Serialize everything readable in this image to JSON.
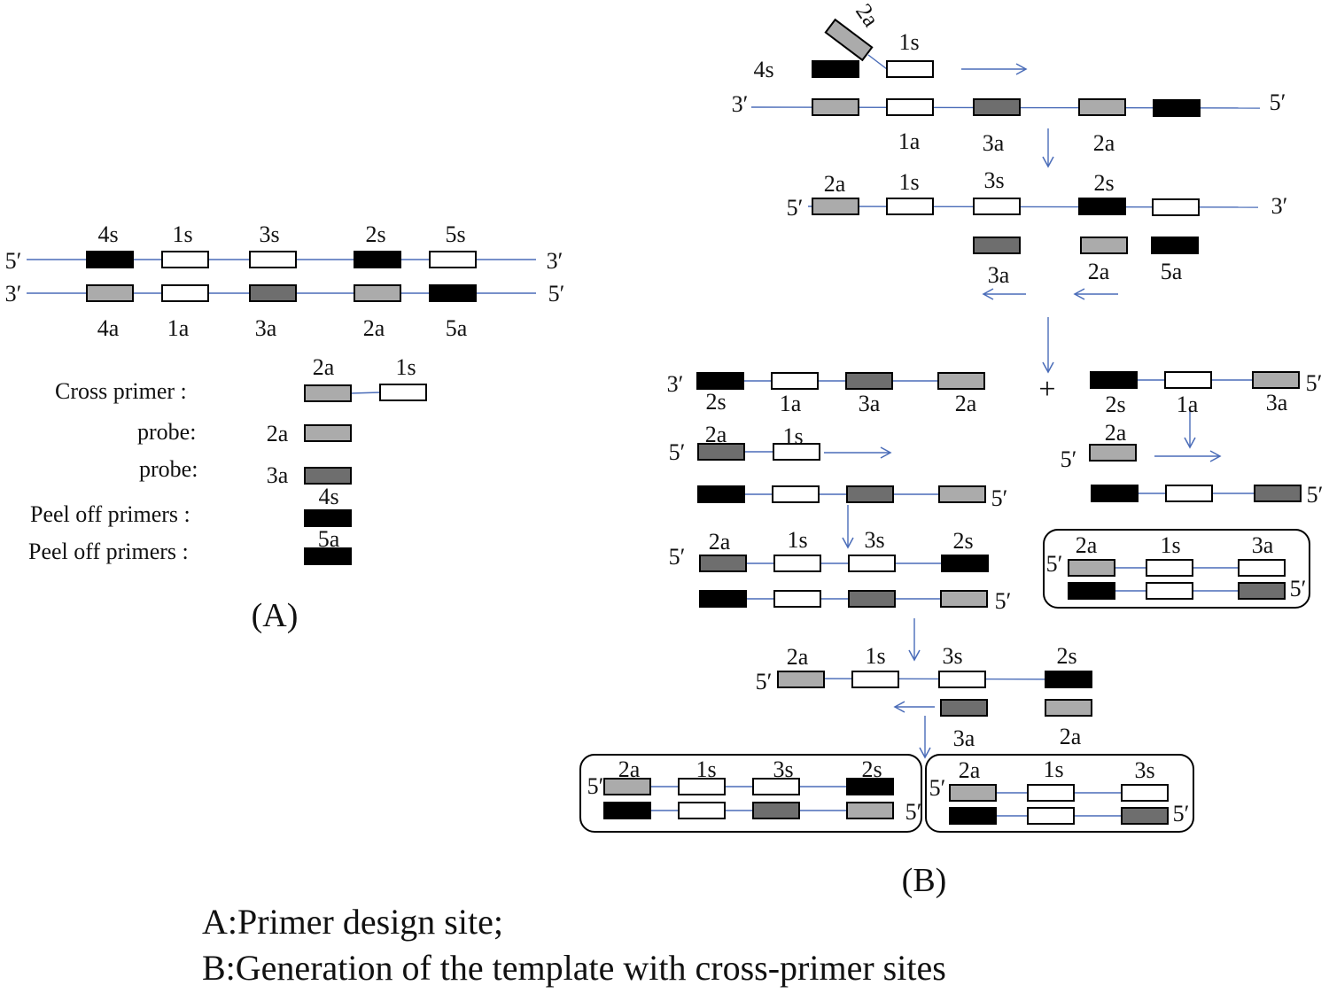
{
  "colors": {
    "strand_line": "#4a6cb8",
    "black_site": "#000000",
    "light_site": "#ababab",
    "dark_site": "#6e6e6e",
    "white_site": "#ffffff"
  },
  "labels": [
    "5′",
    "3′",
    "3′",
    "5′",
    "4s",
    "1s",
    "3s",
    "2s",
    "5s",
    "4a",
    "1a",
    "3a",
    "2a",
    "5a",
    "Cross primer :",
    "2a",
    "1s",
    "probe:",
    "2a",
    "probe:",
    "3a",
    "4s",
    "Peel off primers :",
    "5a",
    "Peel off primers :",
    "(A)",
    "2a",
    "1s",
    "4s",
    "3′",
    "5′",
    "1a",
    "3a",
    "2a",
    "2a",
    "1s",
    "3s",
    "2s",
    "5′",
    "3′",
    "3a",
    "2a",
    "5a",
    "3′",
    "2s",
    "1a",
    "3a",
    "2a",
    "+",
    "5′",
    "2s",
    "1a",
    "3a",
    "5′",
    "2a",
    "1s",
    "2a",
    "5′",
    "5′",
    "5′",
    "5′",
    "2a",
    "1s",
    "3s",
    "2s",
    "5′",
    "2a",
    "1s",
    "3a",
    "5′",
    "5′",
    "5′",
    "2a",
    "1s",
    "3s",
    "2s",
    "3a",
    "2a",
    "5′",
    "2a",
    "1s",
    "3s",
    "2s",
    "5′",
    "5′",
    "2a",
    "1s",
    "3s",
    "5′",
    "(B)",
    "A:Primer design site;",
    "B:Generation of the template with cross-primer sites"
  ]
}
